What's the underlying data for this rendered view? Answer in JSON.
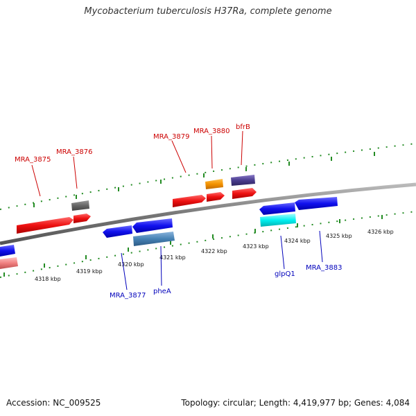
{
  "title": "Mycobacterium tuberculosis H37Ra, complete genome",
  "footer": {
    "accession": "Accession: NC_009525",
    "stats": "Topology: circular; Length: 4,419,977 bp; Genes: 4,084"
  },
  "scale": {
    "unit": "kbp",
    "labels": [
      "4318 kbp",
      "4319 kbp",
      "4320 kbp",
      "4321 kbp",
      "4322 kbp",
      "4323 kbp",
      "4324 kbp",
      "4325 kbp",
      "4326 kbp"
    ]
  },
  "colors": {
    "forward_label": "#cc0000",
    "reverse_label": "#0000bb",
    "backbone": "#888888",
    "ticks": "#228b22"
  },
  "gene_labels": {
    "forward": [
      "MRA_3875",
      "MRA_3876",
      "MRA_3879",
      "MRA_3880",
      "bfrB"
    ],
    "reverse": [
      "MRA_3877",
      "pheA",
      "glpQ1",
      "MRA_3883"
    ]
  }
}
